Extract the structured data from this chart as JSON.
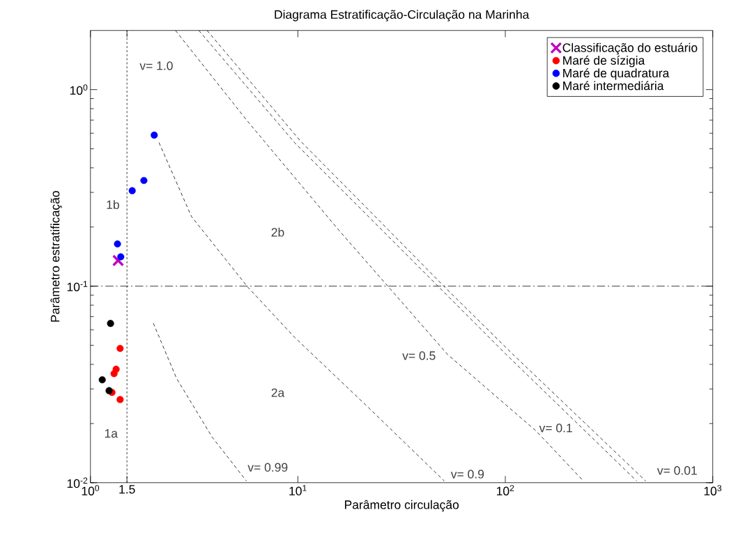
{
  "chart_data": {
    "type": "scatter",
    "title": "Diagrama Estratificação-Circulação na Marinha",
    "xlabel": "Parâmetro circulação",
    "ylabel": "Parâmetro estratificação",
    "log": "xy",
    "xlim": [
      1,
      1000
    ],
    "ylim": [
      0.01,
      2
    ],
    "xticks": [
      {
        "value": 1,
        "label": "10$^{0}$"
      },
      {
        "value": 1.5,
        "label": "1.5"
      },
      {
        "value": 10,
        "label": "10$^{1}$"
      },
      {
        "value": 100,
        "label": "10$^{2}$"
      },
      {
        "value": 1000,
        "label": "10$^{3}$"
      }
    ],
    "yticks": [
      {
        "value": 0.01,
        "label": "10$^{-2}$"
      },
      {
        "value": 0.1,
        "label": "10$^{-1}$"
      },
      {
        "value": 1,
        "label": "10$^{0}$"
      }
    ],
    "legend": "top right",
    "series": [
      {
        "name": "Classificação do estuário",
        "color": "#bf00bf",
        "marker": "cross",
        "x": [
          1.36
        ],
        "values": [
          0.135
        ]
      },
      {
        "name": "Maré de sízigia",
        "color": "#ff0000",
        "marker": "circle",
        "x": [
          1.39,
          1.33,
          1.3,
          1.27,
          1.39
        ],
        "values": [
          0.0482,
          0.0378,
          0.0359,
          0.0288,
          0.0265
        ]
      },
      {
        "name": "Maré de quadratura",
        "color": "#0000ff",
        "marker": "circle",
        "x": [
          2.03,
          1.81,
          1.59,
          1.35,
          1.4
        ],
        "values": [
          0.587,
          0.345,
          0.306,
          0.164,
          0.141
        ]
      },
      {
        "name": "Maré intermediária",
        "color": "#000000",
        "marker": "circle",
        "x": [
          1.25,
          1.14,
          1.23
        ],
        "values": [
          0.0646,
          0.0334,
          0.0294
        ]
      },
      {
        "type": "line",
        "color": "#000000",
        "marker": "none",
        "line_style": "dashed",
        "x": [
          2.01,
          2.6,
          3.87,
          5.65
        ],
        "values": [
          0.0648,
          0.034,
          0.017,
          0.0102
        ]
      },
      {
        "type": "line",
        "color": "#000000",
        "marker": "none",
        "line_style": "dashed",
        "x": [
          2.14,
          3.07,
          5.73,
          9.63,
          21.9,
          50.8
        ],
        "values": [
          0.538,
          0.226,
          0.099,
          0.055,
          0.0241,
          0.0102
        ]
      },
      {
        "type": "line",
        "color": "#000000",
        "marker": "none",
        "line_style": "dashed",
        "x": [
          2.57,
          5.73,
          15.8,
          52.7,
          141,
          238
        ],
        "values": [
          2.0,
          0.689,
          0.192,
          0.0449,
          0.0183,
          0.0102
        ]
      },
      {
        "type": "line",
        "color": "#000000",
        "marker": "none",
        "line_style": "dashed",
        "x": [
          3.33,
          9.63,
          21.9,
          47.8,
          101,
          430
        ],
        "values": [
          2.0,
          0.538,
          0.226,
          0.099,
          0.0449,
          0.0102
        ]
      },
      {
        "type": "line",
        "color": "#000000",
        "marker": "none",
        "line_style": "dashed",
        "x": [
          3.65,
          10.3,
          23.6,
          51.5,
          109,
          475
        ],
        "values": [
          2.0,
          0.547,
          0.226,
          0.098,
          0.0449,
          0.0102
        ]
      }
    ],
    "ref_lines": [
      {
        "axis": "x",
        "value": 1.5,
        "line_style": "dotted",
        "color": "#000000"
      },
      {
        "axis": "y",
        "value": 0.1,
        "line_style": "dashdot",
        "color": "#000000"
      }
    ],
    "annotations": [
      "v= 1.0",
      "v= 0.99",
      "v= 0.9",
      "v= 0.5",
      "v= 0.1",
      "v= 0.01",
      "1a",
      "1b",
      "2a",
      "2b"
    ]
  }
}
